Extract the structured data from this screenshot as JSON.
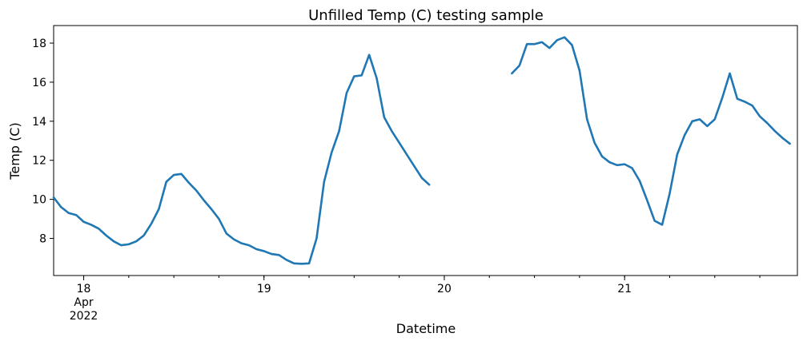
{
  "chart_data": {
    "type": "line",
    "title": "Unfilled Temp (C) testing sample",
    "xlabel": "Datetime",
    "ylabel": "Temp (C)",
    "xlim": [
      "2022-04-17 20:00",
      "2022-04-21 23:00"
    ],
    "ylim": [
      6.1,
      18.9
    ],
    "grid": false,
    "color": "#1f77b4",
    "x_ticks": [
      {
        "at": "2022-04-18 00:00",
        "label": "18",
        "sublabels": [
          "Apr",
          "2022"
        ]
      },
      {
        "at": "2022-04-19 00:00",
        "label": "19",
        "sublabels": []
      },
      {
        "at": "2022-04-20 00:00",
        "label": "20",
        "sublabels": []
      },
      {
        "at": "2022-04-21 00:00",
        "label": "21",
        "sublabels": []
      }
    ],
    "y_ticks": [
      8,
      10,
      12,
      14,
      16,
      18
    ],
    "series": [
      {
        "segments": [
          [
            [
              "2022-04-17 20:00",
              10.1
            ],
            [
              "2022-04-17 21:00",
              9.6
            ],
            [
              "2022-04-17 22:00",
              9.3
            ],
            [
              "2022-04-17 23:00",
              9.2
            ],
            [
              "2022-04-18 00:00",
              8.85
            ],
            [
              "2022-04-18 01:00",
              8.7
            ],
            [
              "2022-04-18 02:00",
              8.5
            ],
            [
              "2022-04-18 03:00",
              8.15
            ],
            [
              "2022-04-18 04:00",
              7.85
            ],
            [
              "2022-04-18 05:00",
              7.65
            ],
            [
              "2022-04-18 06:00",
              7.7
            ],
            [
              "2022-04-18 07:00",
              7.85
            ],
            [
              "2022-04-18 08:00",
              8.15
            ],
            [
              "2022-04-18 09:00",
              8.75
            ],
            [
              "2022-04-18 10:00",
              9.5
            ],
            [
              "2022-04-18 11:00",
              10.9
            ],
            [
              "2022-04-18 12:00",
              11.25
            ],
            [
              "2022-04-18 13:00",
              11.3
            ],
            [
              "2022-04-18 14:00",
              10.85
            ],
            [
              "2022-04-18 15:00",
              10.45
            ],
            [
              "2022-04-18 16:00",
              9.95
            ],
            [
              "2022-04-18 17:00",
              9.5
            ],
            [
              "2022-04-18 18:00",
              9.0
            ],
            [
              "2022-04-18 19:00",
              8.25
            ],
            [
              "2022-04-18 20:00",
              7.95
            ],
            [
              "2022-04-18 21:00",
              7.75
            ],
            [
              "2022-04-18 22:00",
              7.65
            ],
            [
              "2022-04-18 23:00",
              7.45
            ],
            [
              "2022-04-19 00:00",
              7.35
            ],
            [
              "2022-04-19 01:00",
              7.2
            ],
            [
              "2022-04-19 02:00",
              7.15
            ],
            [
              "2022-04-19 03:00",
              6.9
            ],
            [
              "2022-04-19 04:00",
              6.72
            ],
            [
              "2022-04-19 05:00",
              6.7
            ],
            [
              "2022-04-19 06:00",
              6.72
            ],
            [
              "2022-04-19 07:00",
              8.0
            ],
            [
              "2022-04-19 08:00",
              10.9
            ],
            [
              "2022-04-19 09:00",
              12.4
            ],
            [
              "2022-04-19 10:00",
              13.5
            ],
            [
              "2022-04-19 11:00",
              15.45
            ],
            [
              "2022-04-19 12:00",
              16.3
            ],
            [
              "2022-04-19 13:00",
              16.35
            ],
            [
              "2022-04-19 14:00",
              17.4
            ],
            [
              "2022-04-19 15:00",
              16.2
            ],
            [
              "2022-04-19 16:00",
              14.2
            ],
            [
              "2022-04-19 17:00",
              13.5
            ],
            [
              "2022-04-19 18:00",
              12.9
            ],
            [
              "2022-04-19 19:00",
              12.3
            ],
            [
              "2022-04-19 20:00",
              11.7
            ],
            [
              "2022-04-19 21:00",
              11.1
            ],
            [
              "2022-04-19 22:00",
              10.75
            ]
          ],
          [
            [
              "2022-04-20 09:00",
              16.45
            ],
            [
              "2022-04-20 10:00",
              16.85
            ],
            [
              "2022-04-20 11:00",
              17.95
            ],
            [
              "2022-04-20 12:00",
              17.95
            ],
            [
              "2022-04-20 13:00",
              18.05
            ],
            [
              "2022-04-20 14:00",
              17.75
            ],
            [
              "2022-04-20 15:00",
              18.15
            ],
            [
              "2022-04-20 16:00",
              18.3
            ],
            [
              "2022-04-20 17:00",
              17.9
            ],
            [
              "2022-04-20 18:00",
              16.6
            ],
            [
              "2022-04-20 19:00",
              14.1
            ],
            [
              "2022-04-20 20:00",
              12.9
            ],
            [
              "2022-04-20 21:00",
              12.2
            ],
            [
              "2022-04-20 22:00",
              11.9
            ],
            [
              "2022-04-20 23:00",
              11.75
            ],
            [
              "2022-04-21 00:00",
              11.8
            ],
            [
              "2022-04-21 01:00",
              11.6
            ],
            [
              "2022-04-21 02:00",
              10.95
            ],
            [
              "2022-04-21 03:00",
              9.95
            ],
            [
              "2022-04-21 04:00",
              8.9
            ],
            [
              "2022-04-21 05:00",
              8.7
            ],
            [
              "2022-04-21 06:00",
              10.3
            ],
            [
              "2022-04-21 07:00",
              12.3
            ],
            [
              "2022-04-21 08:00",
              13.3
            ],
            [
              "2022-04-21 09:00",
              14.0
            ],
            [
              "2022-04-21 10:00",
              14.1
            ],
            [
              "2022-04-21 11:00",
              13.75
            ],
            [
              "2022-04-21 12:00",
              14.1
            ],
            [
              "2022-04-21 13:00",
              15.2
            ],
            [
              "2022-04-21 14:00",
              16.45
            ],
            [
              "2022-04-21 15:00",
              15.15
            ],
            [
              "2022-04-21 16:00",
              15.0
            ],
            [
              "2022-04-21 17:00",
              14.8
            ],
            [
              "2022-04-21 18:00",
              14.25
            ],
            [
              "2022-04-21 19:00",
              13.9
            ],
            [
              "2022-04-21 20:00",
              13.5
            ],
            [
              "2022-04-21 21:00",
              13.15
            ],
            [
              "2022-04-21 22:00",
              12.85
            ]
          ]
        ]
      }
    ]
  }
}
